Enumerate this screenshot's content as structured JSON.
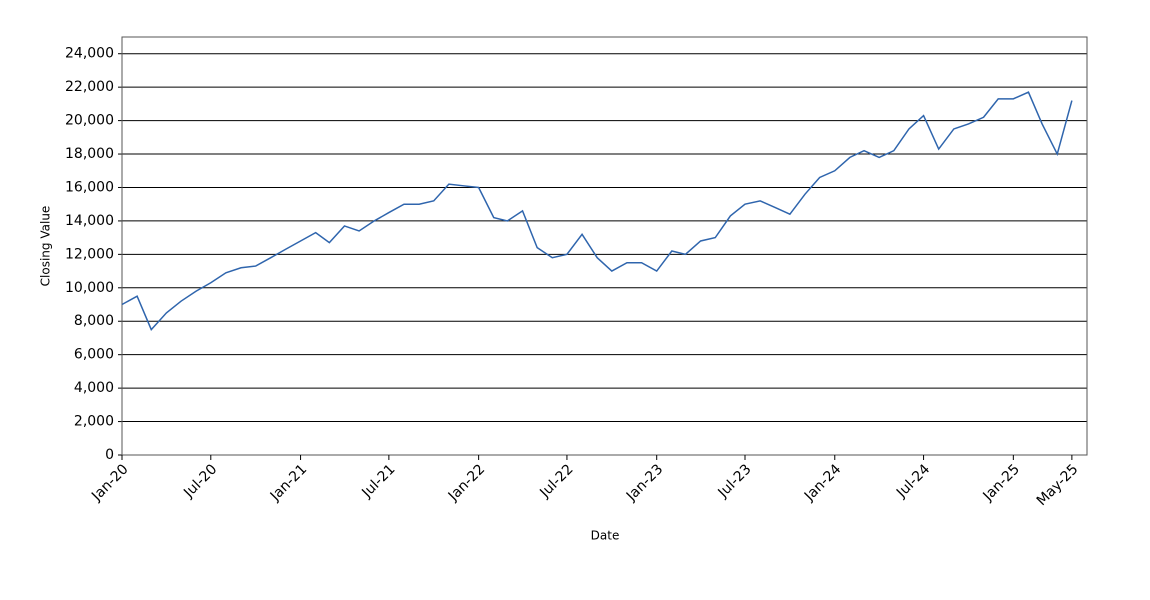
{
  "chart_data": {
    "type": "line",
    "x_label": "Date",
    "y_label": "Closing Value",
    "x": [
      "2020-01",
      "2020-02",
      "2020-03",
      "2020-04",
      "2020-05",
      "2020-06",
      "2020-07",
      "2020-08",
      "2020-09",
      "2020-10",
      "2020-11",
      "2020-12",
      "2021-01",
      "2021-02",
      "2021-03",
      "2021-04",
      "2021-05",
      "2021-06",
      "2021-07",
      "2021-08",
      "2021-09",
      "2021-10",
      "2021-11",
      "2021-12",
      "2022-01",
      "2022-02",
      "2022-03",
      "2022-04",
      "2022-05",
      "2022-06",
      "2022-07",
      "2022-08",
      "2022-09",
      "2022-10",
      "2022-11",
      "2022-12",
      "2023-01",
      "2023-02",
      "2023-03",
      "2023-04",
      "2023-05",
      "2023-06",
      "2023-07",
      "2023-08",
      "2023-09",
      "2023-10",
      "2023-11",
      "2023-12",
      "2024-01",
      "2024-02",
      "2024-03",
      "2024-04",
      "2024-05",
      "2024-06",
      "2024-07",
      "2024-08",
      "2024-09",
      "2024-10",
      "2024-11",
      "2024-12",
      "2025-01",
      "2025-02",
      "2025-03",
      "2025-04",
      "2025-05"
    ],
    "series": [
      {
        "name": "Closing Value",
        "color": "#2f65ad",
        "values": [
          9000,
          9500,
          7500,
          8500,
          9200,
          9800,
          10300,
          10900,
          11200,
          11300,
          11800,
          12300,
          12800,
          13300,
          12700,
          13700,
          13400,
          14000,
          14500,
          15000,
          15000,
          15200,
          16200,
          16100,
          16000,
          14200,
          14000,
          14600,
          12400,
          11800,
          12000,
          13200,
          11800,
          11000,
          11500,
          11500,
          11000,
          12200,
          12000,
          12800,
          13000,
          14300,
          15000,
          15200,
          14800,
          14400,
          15600,
          16600,
          17000,
          17800,
          18200,
          17800,
          18200,
          19500,
          20300,
          18300,
          19500,
          19800,
          20200,
          21300,
          21300,
          21700,
          19800,
          18000,
          21200
        ]
      }
    ],
    "xlim": [
      "2020-01",
      "2025-06"
    ],
    "xticks": [
      {
        "value": "2020-01",
        "label": "Jan-20"
      },
      {
        "value": "2020-07",
        "label": "Jul-20"
      },
      {
        "value": "2021-01",
        "label": "Jan-21"
      },
      {
        "value": "2021-07",
        "label": "Jul-21"
      },
      {
        "value": "2022-01",
        "label": "Jan-22"
      },
      {
        "value": "2022-07",
        "label": "Jul-22"
      },
      {
        "value": "2023-01",
        "label": "Jan-23"
      },
      {
        "value": "2023-07",
        "label": "Jul-23"
      },
      {
        "value": "2024-01",
        "label": "Jan-24"
      },
      {
        "value": "2024-07",
        "label": "Jul-24"
      },
      {
        "value": "2025-01",
        "label": "Jan-25"
      },
      {
        "value": "2025-05",
        "label": "May-25"
      }
    ],
    "ylim": [
      0,
      25000
    ],
    "yticks": [
      0,
      {
        "value": 2000,
        "label": "2,000"
      },
      {
        "value": 4000,
        "label": "4,000"
      },
      {
        "value": 6000,
        "label": "6,000"
      },
      {
        "value": 8000,
        "label": "8,000"
      },
      {
        "value": 10000,
        "label": "10,000"
      },
      {
        "value": 12000,
        "label": "12,000"
      },
      {
        "value": 14000,
        "label": "14,000"
      },
      {
        "value": 16000,
        "label": "16,000"
      },
      {
        "value": 18000,
        "label": "18,000"
      },
      {
        "value": 20000,
        "label": "20,000"
      },
      {
        "value": 22000,
        "label": "22,000"
      },
      {
        "value": 24000,
        "label": "24,000"
      }
    ],
    "grid": true
  }
}
